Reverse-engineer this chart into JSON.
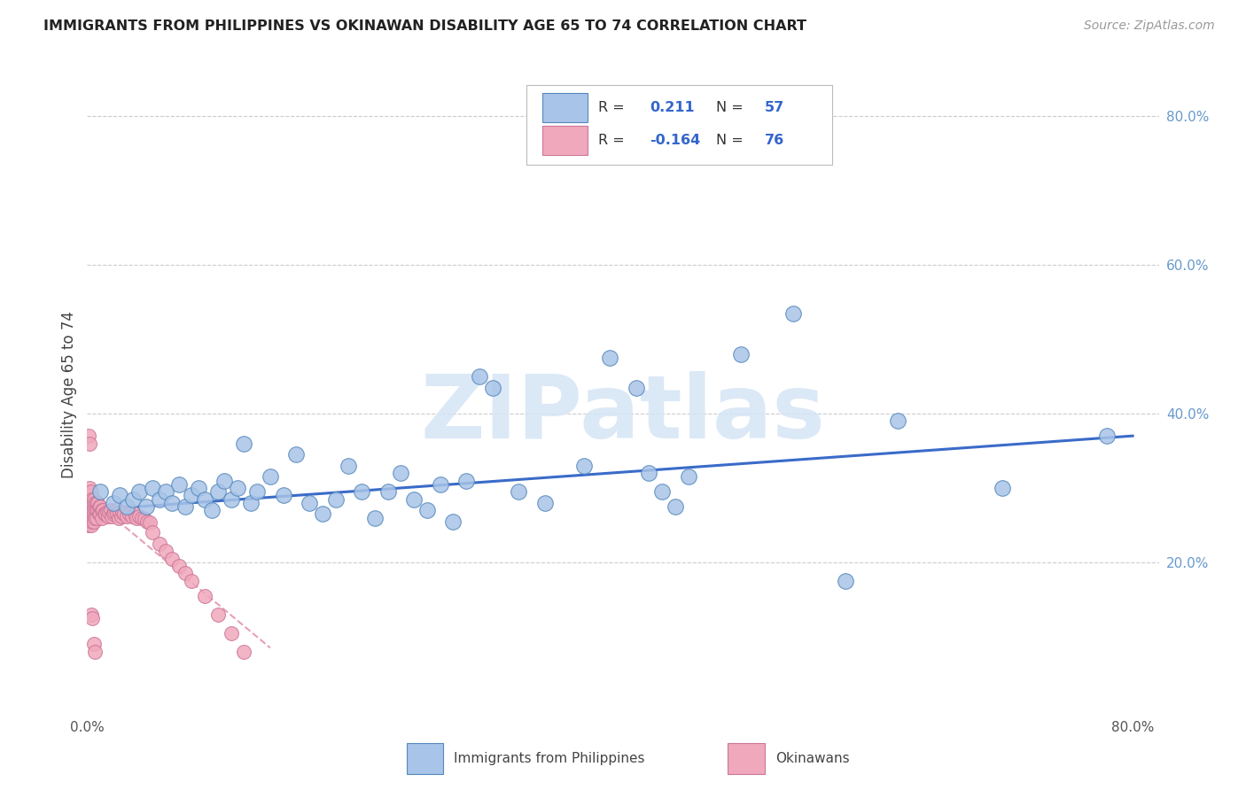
{
  "title": "IMMIGRANTS FROM PHILIPPINES VS OKINAWAN DISABILITY AGE 65 TO 74 CORRELATION CHART",
  "source": "Source: ZipAtlas.com",
  "ylabel": "Disability Age 65 to 74",
  "xlim": [
    0.0,
    0.82
  ],
  "ylim": [
    0.0,
    0.85
  ],
  "xtick_positions": [
    0.0,
    0.1,
    0.2,
    0.3,
    0.4,
    0.5,
    0.6,
    0.7,
    0.8
  ],
  "xticklabels": [
    "0.0%",
    "",
    "",
    "",
    "",
    "",
    "",
    "",
    "80.0%"
  ],
  "yticks_right": [
    0.2,
    0.4,
    0.6,
    0.8
  ],
  "ytick_labels_right": [
    "20.0%",
    "40.0%",
    "60.0%",
    "80.0%"
  ],
  "legend_blue_label": "Immigrants from Philippines",
  "legend_pink_label": "Okinawans",
  "R_blue": "0.211",
  "N_blue": "57",
  "R_pink": "-0.164",
  "N_pink": "76",
  "blue_color": "#a8c4e8",
  "blue_edge": "#5588bb",
  "pink_color": "#f0a8bc",
  "pink_edge": "#cc7799",
  "trend_blue_color": "#3a6bc9",
  "trend_pink_color": "#e8a0b4",
  "watermark": "ZIPatlas",
  "watermark_color": "#d5e5f5",
  "blue_x": [
    0.01,
    0.02,
    0.025,
    0.03,
    0.035,
    0.04,
    0.045,
    0.05,
    0.055,
    0.06,
    0.065,
    0.07,
    0.075,
    0.08,
    0.085,
    0.09,
    0.095,
    0.1,
    0.105,
    0.11,
    0.115,
    0.12,
    0.125,
    0.13,
    0.14,
    0.15,
    0.16,
    0.17,
    0.18,
    0.19,
    0.2,
    0.21,
    0.22,
    0.23,
    0.24,
    0.25,
    0.26,
    0.27,
    0.28,
    0.29,
    0.3,
    0.31,
    0.33,
    0.35,
    0.38,
    0.4,
    0.42,
    0.43,
    0.44,
    0.45,
    0.46,
    0.5,
    0.54,
    0.58,
    0.62,
    0.7,
    0.78
  ],
  "blue_y": [
    0.295,
    0.28,
    0.29,
    0.275,
    0.285,
    0.295,
    0.275,
    0.3,
    0.285,
    0.295,
    0.28,
    0.305,
    0.275,
    0.29,
    0.3,
    0.285,
    0.27,
    0.295,
    0.31,
    0.285,
    0.3,
    0.36,
    0.28,
    0.295,
    0.315,
    0.29,
    0.345,
    0.28,
    0.265,
    0.285,
    0.33,
    0.295,
    0.26,
    0.295,
    0.32,
    0.285,
    0.27,
    0.305,
    0.255,
    0.31,
    0.45,
    0.435,
    0.295,
    0.28,
    0.33,
    0.475,
    0.435,
    0.32,
    0.295,
    0.275,
    0.315,
    0.48,
    0.535,
    0.175,
    0.39,
    0.3,
    0.37
  ],
  "pink_x": [
    0.001,
    0.001,
    0.001,
    0.001,
    0.001,
    0.001,
    0.002,
    0.002,
    0.002,
    0.002,
    0.002,
    0.003,
    0.003,
    0.003,
    0.003,
    0.003,
    0.004,
    0.004,
    0.004,
    0.004,
    0.005,
    0.005,
    0.005,
    0.005,
    0.006,
    0.006,
    0.006,
    0.007,
    0.007,
    0.007,
    0.008,
    0.008,
    0.009,
    0.009,
    0.01,
    0.01,
    0.011,
    0.011,
    0.012,
    0.013,
    0.014,
    0.015,
    0.016,
    0.017,
    0.018,
    0.019,
    0.02,
    0.021,
    0.022,
    0.023,
    0.024,
    0.025,
    0.026,
    0.027,
    0.028,
    0.03,
    0.032,
    0.034,
    0.036,
    0.038,
    0.04,
    0.042,
    0.044,
    0.046,
    0.048,
    0.05,
    0.055,
    0.06,
    0.065,
    0.07,
    0.075,
    0.08,
    0.09,
    0.1,
    0.11,
    0.12
  ],
  "pink_y": [
    0.295,
    0.285,
    0.275,
    0.27,
    0.26,
    0.25,
    0.3,
    0.285,
    0.275,
    0.265,
    0.255,
    0.295,
    0.28,
    0.27,
    0.26,
    0.25,
    0.285,
    0.275,
    0.265,
    0.255,
    0.285,
    0.275,
    0.265,
    0.255,
    0.28,
    0.27,
    0.26,
    0.28,
    0.27,
    0.26,
    0.28,
    0.27,
    0.275,
    0.265,
    0.275,
    0.265,
    0.27,
    0.26,
    0.27,
    0.265,
    0.265,
    0.268,
    0.262,
    0.268,
    0.27,
    0.262,
    0.265,
    0.268,
    0.27,
    0.265,
    0.26,
    0.268,
    0.262,
    0.268,
    0.265,
    0.262,
    0.265,
    0.262,
    0.265,
    0.26,
    0.262,
    0.26,
    0.258,
    0.255,
    0.253,
    0.24,
    0.225,
    0.215,
    0.205,
    0.195,
    0.185,
    0.175,
    0.155,
    0.13,
    0.105,
    0.08
  ],
  "pink_outliers_x": [
    0.001,
    0.002,
    0.003,
    0.004,
    0.005,
    0.006
  ],
  "pink_outliers_y": [
    0.37,
    0.36,
    0.13,
    0.125,
    0.09,
    0.08
  ],
  "blue_trend_x0": 0.0,
  "blue_trend_y0": 0.27,
  "blue_trend_x1": 0.8,
  "blue_trend_y1": 0.37,
  "pink_trend_x0": 0.0,
  "pink_trend_y0": 0.29,
  "pink_trend_x1": 0.14,
  "pink_trend_y1": 0.085
}
